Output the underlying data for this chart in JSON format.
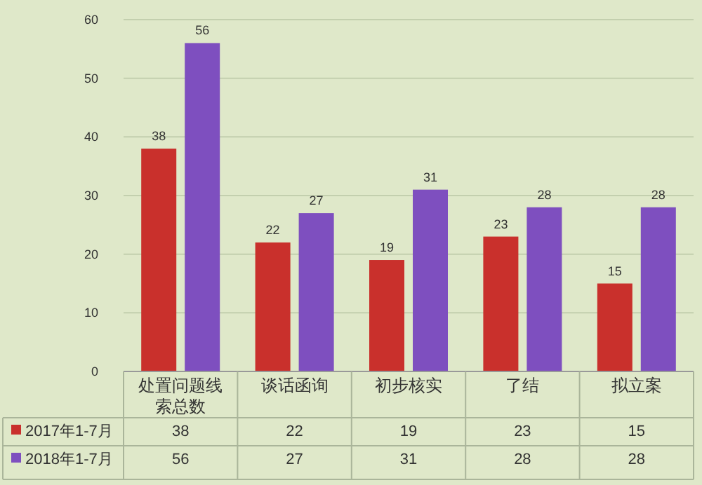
{
  "chart_data": {
    "type": "bar",
    "categories": [
      "处置问题线索总数",
      "谈话函询",
      "初步核实",
      "了结",
      "拟立案"
    ],
    "series": [
      {
        "name": "2017年1-7月",
        "color": "#c9302c",
        "values": [
          38,
          22,
          19,
          23,
          15
        ],
        "value_labels": [
          "38",
          "22",
          "19",
          "23",
          "15"
        ]
      },
      {
        "name": "2018年1-7月",
        "color": "#7e4fbf",
        "values": [
          56,
          27,
          31,
          28,
          28
        ],
        "value_labels": [
          "56",
          "27",
          "31",
          "28",
          "28"
        ]
      }
    ],
    "ylim": [
      0,
      60
    ],
    "yticks": [
      0,
      10,
      20,
      30,
      40,
      50,
      60
    ],
    "grid": "y",
    "data_labels": true,
    "legend": "bottom"
  }
}
